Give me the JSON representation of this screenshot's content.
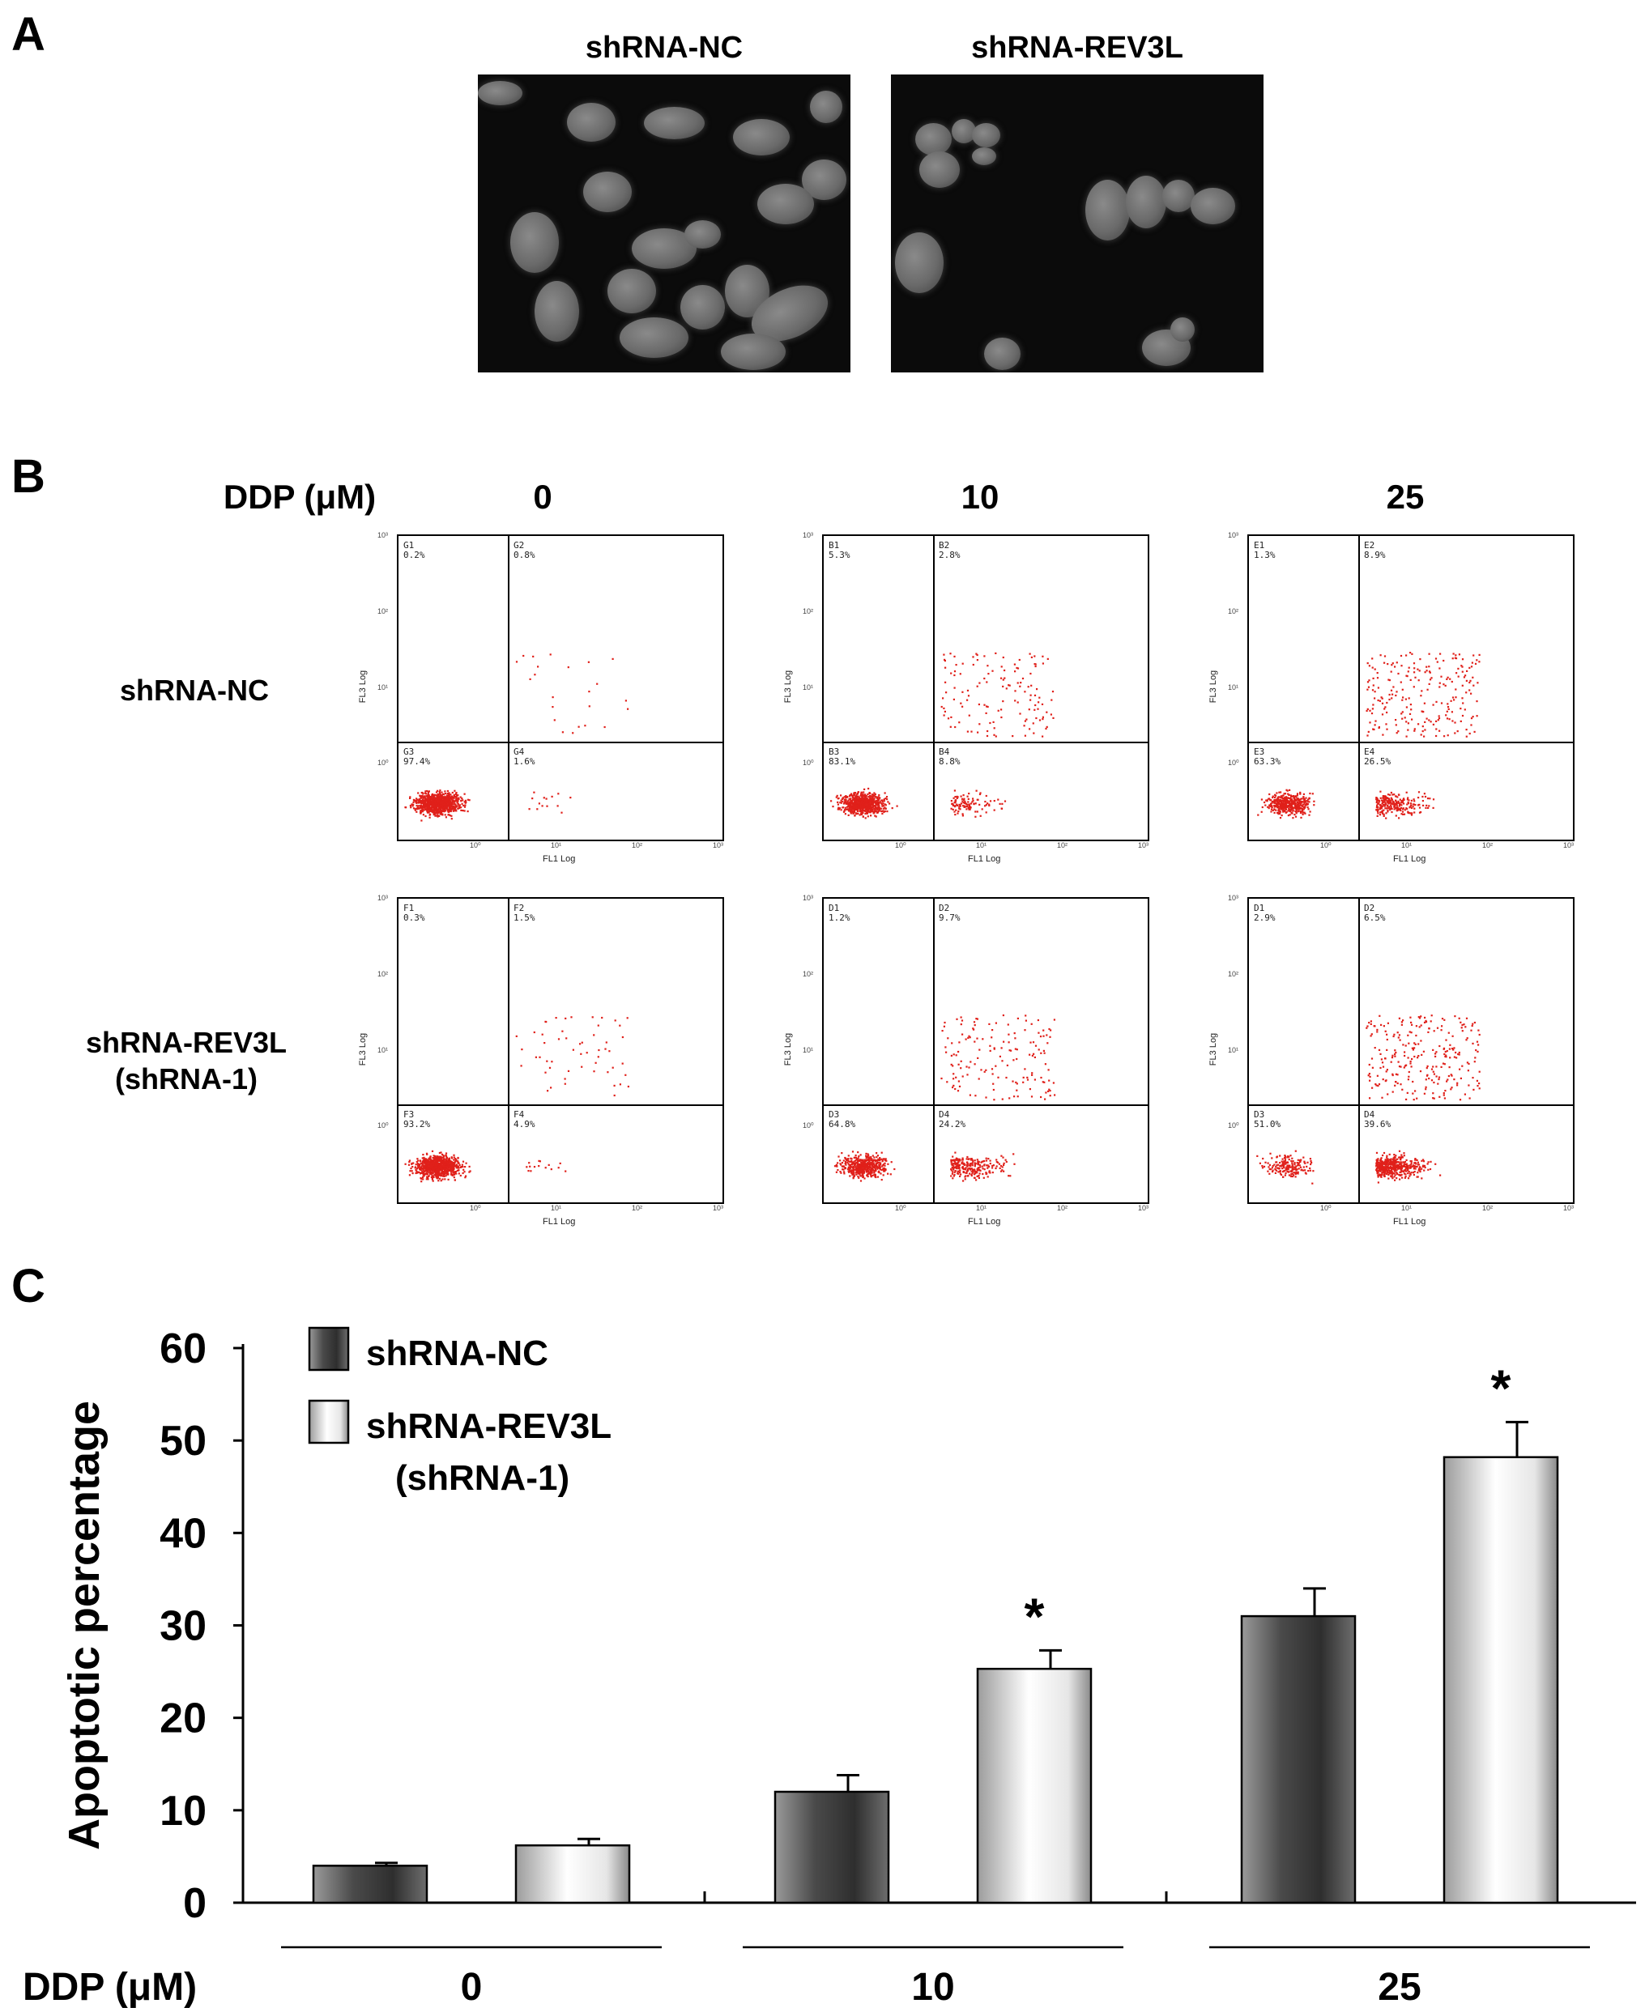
{
  "panels": {
    "a": {
      "letter": "A",
      "titles": [
        "shRNA-NC",
        "shRNA-REV3L"
      ]
    },
    "b": {
      "letter": "B",
      "dose_header": "DDP (μM)",
      "doses": [
        "0",
        "10",
        "25"
      ],
      "rows": [
        {
          "label_lines": [
            "shRNA-NC"
          ]
        },
        {
          "label_lines": [
            "shRNA-REV3L",
            "(shRNA-1)"
          ]
        }
      ],
      "plots": [
        [
          {
            "q": [
              "G1",
              "G2",
              "G3",
              "G4"
            ],
            "p": [
              "0.2%",
              "0.8%",
              "97.4%",
              "1.6%"
            ]
          },
          {
            "q": [
              "B1",
              "B2",
              "B3",
              "B4"
            ],
            "p": [
              "5.3%",
              "2.8%",
              "83.1%",
              "8.8%"
            ]
          },
          {
            "q": [
              "E1",
              "E2",
              "E3",
              "E4"
            ],
            "p": [
              "1.3%",
              "8.9%",
              "63.3%",
              "26.5%"
            ]
          }
        ],
        [
          {
            "q": [
              "F1",
              "F2",
              "F3",
              "F4"
            ],
            "p": [
              "0.3%",
              "1.5%",
              "93.2%",
              "4.9%"
            ]
          },
          {
            "q": [
              "D1",
              "D2",
              "D3",
              "D4"
            ],
            "p": [
              "1.2%",
              "9.7%",
              "64.8%",
              "24.2%"
            ]
          },
          {
            "q": [
              "D1",
              "D2",
              "D3",
              "D4"
            ],
            "p": [
              "2.9%",
              "6.5%",
              "51.0%",
              "39.6%"
            ]
          }
        ]
      ],
      "x_axis": "FL1 Log",
      "y_axis": "FL3 Log",
      "ticks": [
        "10⁰",
        "10¹",
        "10²",
        "10³"
      ]
    },
    "c": {
      "letter": "C"
    }
  },
  "chart_data": {
    "type": "bar",
    "categories": [
      "0",
      "10",
      "25"
    ],
    "xlabel": "DDP (μM)",
    "ylabel": "Apoptotic percentage",
    "ylim": [
      0,
      60
    ],
    "yticks": [
      0,
      10,
      20,
      30,
      40,
      50,
      60
    ],
    "legend_position": "top-left",
    "series": [
      {
        "name": "shRNA-NC",
        "values": [
          4,
          12,
          31
        ],
        "errors": [
          0.3,
          1.8,
          3.0
        ],
        "color": "#555555"
      },
      {
        "name": "shRNA-REV3L (shRNA-1)",
        "legend_lines": [
          "shRNA-REV3L",
          "(shRNA-1)"
        ],
        "values": [
          6.2,
          25.3,
          48.2
        ],
        "errors": [
          0.7,
          2.0,
          3.8
        ],
        "color": "#e8e8e8"
      }
    ],
    "significance": [
      "",
      "*",
      "*"
    ]
  }
}
